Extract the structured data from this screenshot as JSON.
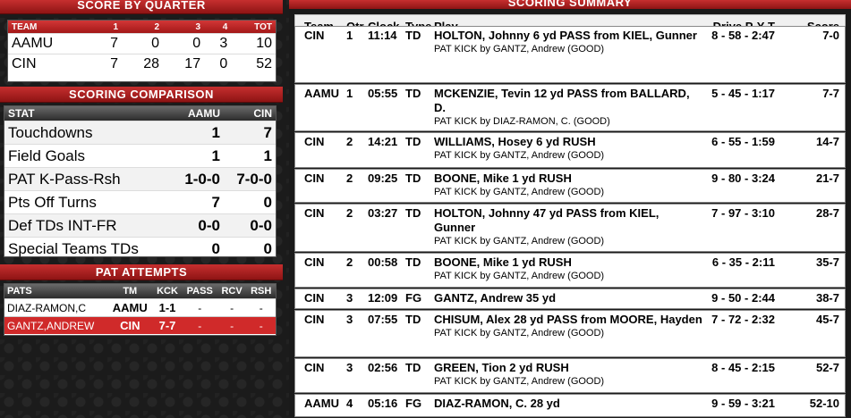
{
  "score_by_quarter": {
    "title": "SCORE BY QUARTER",
    "headers": [
      "TEAM",
      "1",
      "2",
      "3",
      "4",
      "TOT"
    ],
    "rows": [
      [
        "AAMU",
        "7",
        "0",
        "0",
        "3",
        "10"
      ],
      [
        "CIN",
        "7",
        "28",
        "17",
        "0",
        "52"
      ]
    ]
  },
  "scoring_comparison": {
    "title": "SCORING COMPARISON",
    "headers": [
      "STAT",
      "AAMU",
      "CIN"
    ],
    "rows": [
      [
        "Touchdowns",
        "1",
        "7"
      ],
      [
        "Field Goals",
        "1",
        "1"
      ],
      [
        "PAT K-Pass-Rsh",
        "1-0-0",
        "7-0-0"
      ],
      [
        "Pts Off Turns",
        "7",
        "0"
      ],
      [
        "Def TDs INT-FR",
        "0-0",
        "0-0"
      ],
      [
        "Special Teams TDs",
        "0",
        "0"
      ]
    ]
  },
  "pat_attempts": {
    "title": "PAT ATTEMPTS",
    "headers": [
      "PATS",
      "TM",
      "KCK",
      "PASS",
      "RCV",
      "RSH"
    ],
    "rows": [
      [
        "DIAZ-RAMON,C",
        "AAMU",
        "1-1",
        "-",
        "-",
        "-"
      ],
      [
        "GANTZ,ANDREW",
        "CIN",
        "7-7",
        "-",
        "-",
        "-"
      ]
    ]
  },
  "scoring_summary": {
    "title": "SCORING SUMMARY",
    "headers": {
      "team": "Team",
      "qtr": "Qtr",
      "clock": "Clock",
      "type": "Type",
      "play": "Play",
      "drive": "Drive P-Y-T",
      "score": "Score"
    },
    "plays": [
      {
        "team": "CIN",
        "qtr": "1",
        "clock": "11:14",
        "type": "TD",
        "play": "HOLTON, Johnny 6 yd PASS from KIEL, Gunner",
        "pat": "PAT KICK by GANTZ, Andrew (GOOD)",
        "drive": "8 - 58 - 2:47",
        "score": "7-0"
      },
      {
        "team": "AAMU",
        "qtr": "1",
        "clock": "05:55",
        "type": "TD",
        "play": "MCKENZIE, Tevin 12 yd PASS from BALLARD, D.",
        "pat": "PAT KICK by DIAZ-RAMON, C. (GOOD)",
        "drive": "5 - 45 - 1:17",
        "score": "7-7"
      },
      {
        "team": "CIN",
        "qtr": "2",
        "clock": "14:21",
        "type": "TD",
        "play": "WILLIAMS, Hosey 6 yd RUSH",
        "pat": "PAT KICK by GANTZ, Andrew (GOOD)",
        "drive": "6 - 55 - 1:59",
        "score": "14-7"
      },
      {
        "team": "CIN",
        "qtr": "2",
        "clock": "09:25",
        "type": "TD",
        "play": "BOONE, Mike 1 yd RUSH",
        "pat": "PAT KICK by GANTZ, Andrew (GOOD)",
        "drive": "9 - 80 - 3:24",
        "score": "21-7"
      },
      {
        "team": "CIN",
        "qtr": "2",
        "clock": "03:27",
        "type": "TD",
        "play": "HOLTON, Johnny 47 yd PASS from KIEL, Gunner",
        "pat": "PAT KICK by GANTZ, Andrew (GOOD)",
        "drive": "7 - 97 - 3:10",
        "score": "28-7"
      },
      {
        "team": "CIN",
        "qtr": "2",
        "clock": "00:58",
        "type": "TD",
        "play": "BOONE, Mike 1 yd RUSH",
        "pat": "PAT KICK by GANTZ, Andrew (GOOD)",
        "drive": "6 - 35 - 2:11",
        "score": "35-7"
      },
      {
        "team": "CIN",
        "qtr": "3",
        "clock": "12:09",
        "type": "FG",
        "play": "GANTZ, Andrew 35 yd",
        "pat": "",
        "drive": "9 - 50 - 2:44",
        "score": "38-7"
      },
      {
        "team": "CIN",
        "qtr": "3",
        "clock": "07:55",
        "type": "TD",
        "play": "CHISUM, Alex 28 yd PASS from MOORE, Hayden",
        "pat": "PAT KICK by GANTZ, Andrew (GOOD)",
        "drive": "7 - 72 - 2:32",
        "score": "45-7"
      },
      {
        "team": "CIN",
        "qtr": "3",
        "clock": "02:56",
        "type": "TD",
        "play": "GREEN, Tion 2 yd RUSH",
        "pat": "PAT KICK by GANTZ, Andrew (GOOD)",
        "drive": "8 - 45 - 2:15",
        "score": "52-7"
      },
      {
        "team": "AAMU",
        "qtr": "4",
        "clock": "05:16",
        "type": "FG",
        "play": "DIAZ-RAMON, C. 28 yd",
        "pat": "",
        "drive": "9 - 59 - 3:21",
        "score": "52-10"
      }
    ]
  }
}
